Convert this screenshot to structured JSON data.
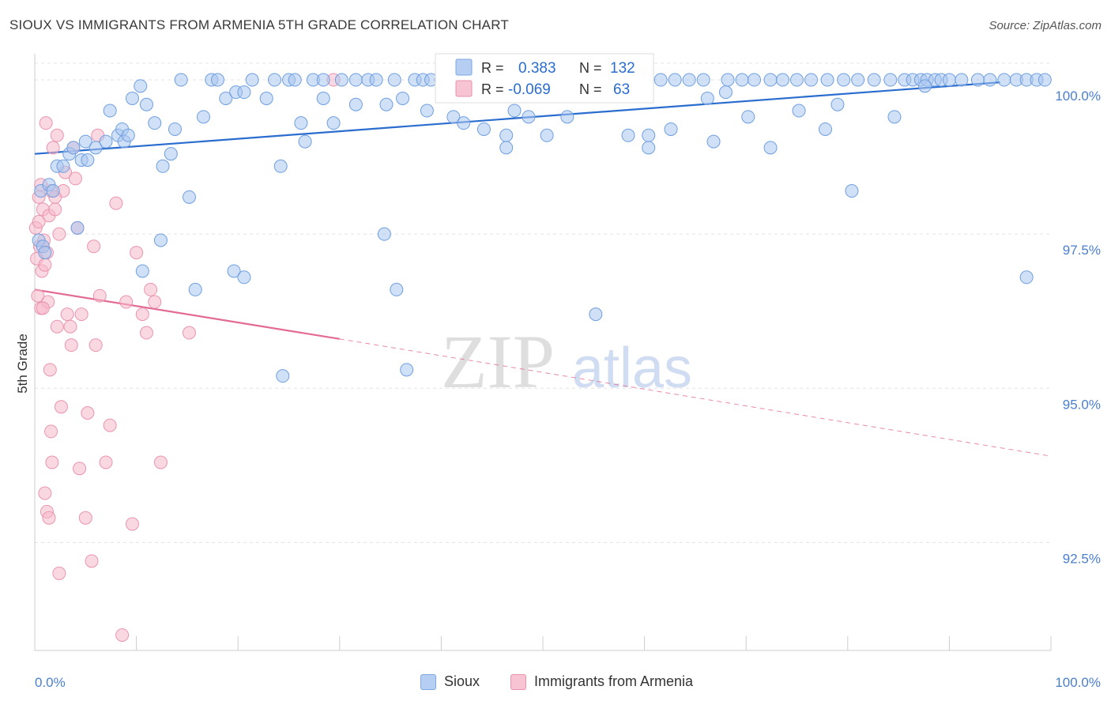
{
  "title": "SIOUX VS IMMIGRANTS FROM ARMENIA 5TH GRADE CORRELATION CHART",
  "source": "Source: ZipAtlas.com",
  "watermark": {
    "zip": "ZIP",
    "atlas": "atlas"
  },
  "legend_box": {
    "r_label": "R =",
    "n_label": "N =",
    "rows": [
      {
        "r": "0.383",
        "n": "132"
      },
      {
        "r": "-0.069",
        "n": "63"
      }
    ]
  },
  "bottom_legend": {
    "sioux": "Sioux",
    "armenia": "Immigrants from Armenia"
  },
  "colors": {
    "sioux_fill": "#a9c6ef",
    "sioux_stroke": "#6f9fdf",
    "sioux_line": "#2a6dcf",
    "armenia_fill": "#f5b8cb",
    "armenia_stroke": "#e995b0",
    "armenia_line": "#e36a93",
    "axis_label": "#4a7fd0"
  },
  "chart_data": {
    "type": "scatter",
    "title": "SIOUX VS IMMIGRANTS FROM ARMENIA 5TH GRADE CORRELATION CHART",
    "xlabel": "",
    "ylabel": "5th Grade",
    "xlim": [
      0,
      100
    ],
    "ylim": [
      90.75,
      100.5
    ],
    "x_tick_labels": [
      "0.0%",
      "100.0%"
    ],
    "y_ticks": [
      92.5,
      95.0,
      97.5,
      100.0
    ],
    "y_tick_labels": [
      "92.5%",
      "95.0%",
      "97.5%",
      "100.0%"
    ],
    "grid": true,
    "legend_position": "top-center",
    "series": [
      {
        "name": "Sioux",
        "r": 0.383,
        "n": 132,
        "trend": {
          "x": [
            0,
            95
          ],
          "y": [
            98.8,
            99.96
          ]
        },
        "points": [
          [
            0.4,
            97.4
          ],
          [
            0.6,
            98.2
          ],
          [
            0.8,
            97.3
          ],
          [
            1.0,
            97.2
          ],
          [
            1.4,
            98.3
          ],
          [
            1.8,
            98.2
          ],
          [
            2.2,
            98.6
          ],
          [
            2.8,
            98.6
          ],
          [
            3.4,
            98.8
          ],
          [
            3.8,
            98.9
          ],
          [
            4.2,
            97.6
          ],
          [
            4.6,
            98.7
          ],
          [
            5.0,
            99.0
          ],
          [
            5.2,
            98.7
          ],
          [
            6.0,
            98.9
          ],
          [
            7.0,
            99.0
          ],
          [
            7.4,
            99.5
          ],
          [
            8.2,
            99.1
          ],
          [
            8.6,
            99.2
          ],
          [
            8.8,
            99.0
          ],
          [
            9.2,
            99.1
          ],
          [
            9.6,
            99.7
          ],
          [
            10.4,
            99.9
          ],
          [
            11.0,
            99.6
          ],
          [
            11.8,
            99.3
          ],
          [
            12.6,
            98.6
          ],
          [
            13.4,
            98.8
          ],
          [
            13.8,
            99.2
          ],
          [
            14.4,
            100.0
          ],
          [
            15.2,
            98.1
          ],
          [
            16.6,
            99.4
          ],
          [
            17.4,
            100.0
          ],
          [
            18.0,
            100.0
          ],
          [
            18.8,
            99.7
          ],
          [
            19.8,
            99.8
          ],
          [
            20.6,
            99.8
          ],
          [
            21.4,
            100.0
          ],
          [
            22.8,
            99.7
          ],
          [
            23.6,
            100.0
          ],
          [
            24.2,
            98.6
          ],
          [
            25.0,
            100.0
          ],
          [
            25.6,
            100.0
          ],
          [
            26.2,
            99.3
          ],
          [
            27.4,
            100.0
          ],
          [
            28.4,
            100.0
          ],
          [
            29.4,
            99.3
          ],
          [
            30.2,
            100.0
          ],
          [
            31.6,
            100.0
          ],
          [
            32.8,
            100.0
          ],
          [
            33.6,
            100.0
          ],
          [
            34.6,
            99.6
          ],
          [
            35.4,
            100.0
          ],
          [
            36.2,
            99.7
          ],
          [
            37.4,
            100.0
          ],
          [
            38.2,
            100.0
          ],
          [
            39.0,
            100.0
          ],
          [
            40.0,
            100.0
          ],
          [
            41.2,
            100.0
          ],
          [
            42.2,
            100.0
          ],
          [
            43.4,
            100.0
          ],
          [
            44.6,
            100.0
          ],
          [
            45.6,
            100.0
          ],
          [
            46.4,
            99.1
          ],
          [
            47.4,
            100.0
          ],
          [
            48.8,
            100.0
          ],
          [
            50.0,
            100.0
          ],
          [
            51.4,
            100.0
          ],
          [
            52.4,
            99.4
          ],
          [
            53.6,
            100.0
          ],
          [
            55.2,
            100.0
          ],
          [
            56.8,
            100.0
          ],
          [
            58.0,
            100.0
          ],
          [
            59.2,
            100.0
          ],
          [
            60.4,
            99.1
          ],
          [
            61.6,
            100.0
          ],
          [
            63.0,
            100.0
          ],
          [
            64.4,
            100.0
          ],
          [
            65.8,
            100.0
          ],
          [
            66.8,
            99.0
          ],
          [
            68.2,
            100.0
          ],
          [
            69.6,
            100.0
          ],
          [
            70.8,
            100.0
          ],
          [
            72.4,
            100.0
          ],
          [
            73.6,
            100.0
          ],
          [
            75.0,
            100.0
          ],
          [
            76.4,
            100.0
          ],
          [
            78.0,
            100.0
          ],
          [
            79.6,
            100.0
          ],
          [
            81.0,
            100.0
          ],
          [
            82.6,
            100.0
          ],
          [
            84.2,
            100.0
          ],
          [
            85.6,
            100.0
          ],
          [
            86.4,
            100.0
          ],
          [
            87.2,
            100.0
          ],
          [
            87.8,
            100.0
          ],
          [
            88.6,
            100.0
          ],
          [
            89.2,
            100.0
          ],
          [
            90.0,
            100.0
          ],
          [
            91.2,
            100.0
          ],
          [
            92.8,
            100.0
          ],
          [
            94.0,
            100.0
          ],
          [
            95.4,
            100.0
          ],
          [
            96.6,
            100.0
          ],
          [
            97.6,
            100.0
          ],
          [
            98.6,
            100.0
          ],
          [
            99.4,
            100.0
          ],
          [
            10.6,
            96.9
          ],
          [
            12.4,
            97.4
          ],
          [
            15.8,
            96.6
          ],
          [
            19.6,
            96.9
          ],
          [
            20.6,
            96.8
          ],
          [
            24.4,
            95.2
          ],
          [
            26.6,
            99.0
          ],
          [
            28.4,
            99.7
          ],
          [
            31.6,
            99.6
          ],
          [
            34.4,
            97.5
          ],
          [
            35.6,
            96.6
          ],
          [
            36.6,
            95.3
          ],
          [
            38.6,
            99.5
          ],
          [
            41.2,
            99.4
          ],
          [
            42.2,
            99.3
          ],
          [
            44.2,
            99.2
          ],
          [
            46.4,
            98.9
          ],
          [
            47.2,
            99.5
          ],
          [
            48.6,
            99.4
          ],
          [
            50.4,
            99.1
          ],
          [
            55.2,
            96.2
          ],
          [
            58.4,
            99.1
          ],
          [
            60.4,
            98.9
          ],
          [
            62.6,
            99.2
          ],
          [
            66.2,
            99.7
          ],
          [
            68.0,
            99.8
          ],
          [
            70.2,
            99.4
          ],
          [
            72.4,
            98.9
          ],
          [
            75.2,
            99.5
          ],
          [
            77.8,
            99.2
          ],
          [
            79.0,
            99.6
          ],
          [
            80.4,
            98.2
          ],
          [
            84.6,
            99.4
          ],
          [
            87.6,
            99.9
          ],
          [
            97.6,
            96.8
          ]
        ]
      },
      {
        "name": "Immigrants from Armenia",
        "r": -0.069,
        "n": 63,
        "trend": {
          "x": [
            0,
            30
          ],
          "y": [
            96.6,
            95.8
          ]
        },
        "trend_dashed": {
          "x": [
            30,
            100
          ],
          "y": [
            95.8,
            93.9
          ]
        },
        "points": [
          [
            0.1,
            97.6
          ],
          [
            0.2,
            97.1
          ],
          [
            0.3,
            96.5
          ],
          [
            0.4,
            98.1
          ],
          [
            0.4,
            97.7
          ],
          [
            0.5,
            97.3
          ],
          [
            0.6,
            96.3
          ],
          [
            0.7,
            96.9
          ],
          [
            0.8,
            97.9
          ],
          [
            0.9,
            97.4
          ],
          [
            1.0,
            97.0
          ],
          [
            1.1,
            99.3
          ],
          [
            1.2,
            97.2
          ],
          [
            1.3,
            96.4
          ],
          [
            1.4,
            97.8
          ],
          [
            1.5,
            95.3
          ],
          [
            1.6,
            94.3
          ],
          [
            1.7,
            93.8
          ],
          [
            1.8,
            98.9
          ],
          [
            2.0,
            97.9
          ],
          [
            2.2,
            99.1
          ],
          [
            2.4,
            97.5
          ],
          [
            2.6,
            94.7
          ],
          [
            2.8,
            98.2
          ],
          [
            3.0,
            98.5
          ],
          [
            3.2,
            96.2
          ],
          [
            3.5,
            96.0
          ],
          [
            3.6,
            95.7
          ],
          [
            3.8,
            98.9
          ],
          [
            4.0,
            98.4
          ],
          [
            4.2,
            97.6
          ],
          [
            4.4,
            93.7
          ],
          [
            4.6,
            96.2
          ],
          [
            5.0,
            92.9
          ],
          [
            5.2,
            94.6
          ],
          [
            5.6,
            92.2
          ],
          [
            5.8,
            97.3
          ],
          [
            6.0,
            95.7
          ],
          [
            6.2,
            99.1
          ],
          [
            6.4,
            96.5
          ],
          [
            7.0,
            93.8
          ],
          [
            7.4,
            94.4
          ],
          [
            8.0,
            98.0
          ],
          [
            8.6,
            91.0
          ],
          [
            9.0,
            96.4
          ],
          [
            9.6,
            92.8
          ],
          [
            10.0,
            97.2
          ],
          [
            10.6,
            96.2
          ],
          [
            11.0,
            95.9
          ],
          [
            11.4,
            96.6
          ],
          [
            11.8,
            96.4
          ],
          [
            12.4,
            93.8
          ],
          [
            15.2,
            95.9
          ],
          [
            1.0,
            93.3
          ],
          [
            1.2,
            93.0
          ],
          [
            1.4,
            92.9
          ],
          [
            2.4,
            92.0
          ],
          [
            0.6,
            98.3
          ],
          [
            1.6,
            98.2
          ],
          [
            0.8,
            96.3
          ],
          [
            2.0,
            98.1
          ],
          [
            2.2,
            96.0
          ],
          [
            29.4,
            100.0
          ]
        ]
      }
    ]
  }
}
